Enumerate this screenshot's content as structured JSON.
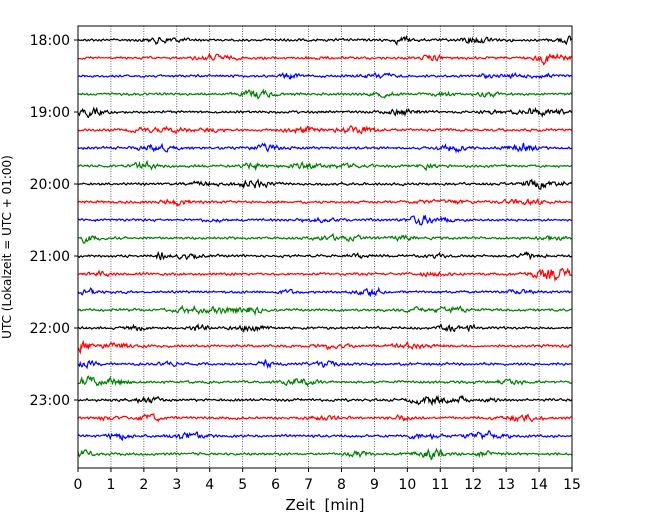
{
  "chart_data": {
    "type": "line",
    "subtype": "helicorder-seismogram",
    "title": "",
    "xlabel": "Zeit  [min]",
    "ylabel": "UTC (Lokalzeit = UTC + 01:00)",
    "xlim": [
      0,
      15
    ],
    "x_ticks": [
      0,
      1,
      2,
      3,
      4,
      5,
      6,
      7,
      8,
      9,
      10,
      11,
      12,
      13,
      14,
      15
    ],
    "x_grid": true,
    "y_grid": false,
    "y_tick_labels": [
      "18:00",
      "19:00",
      "20:00",
      "21:00",
      "22:00",
      "23:00"
    ],
    "trace_interval_min": 15,
    "trace_start_times": [
      "18:00",
      "18:15",
      "18:30",
      "18:45",
      "19:00",
      "19:15",
      "19:30",
      "19:45",
      "20:00",
      "20:15",
      "20:30",
      "20:45",
      "21:00",
      "21:15",
      "21:30",
      "21:45",
      "22:00",
      "22:15",
      "22:30",
      "22:45",
      "23:00",
      "23:15",
      "23:30",
      "23:45"
    ],
    "trace_colors": [
      "#000000",
      "#ff0000",
      "#0000ff",
      "#008000"
    ]
  }
}
